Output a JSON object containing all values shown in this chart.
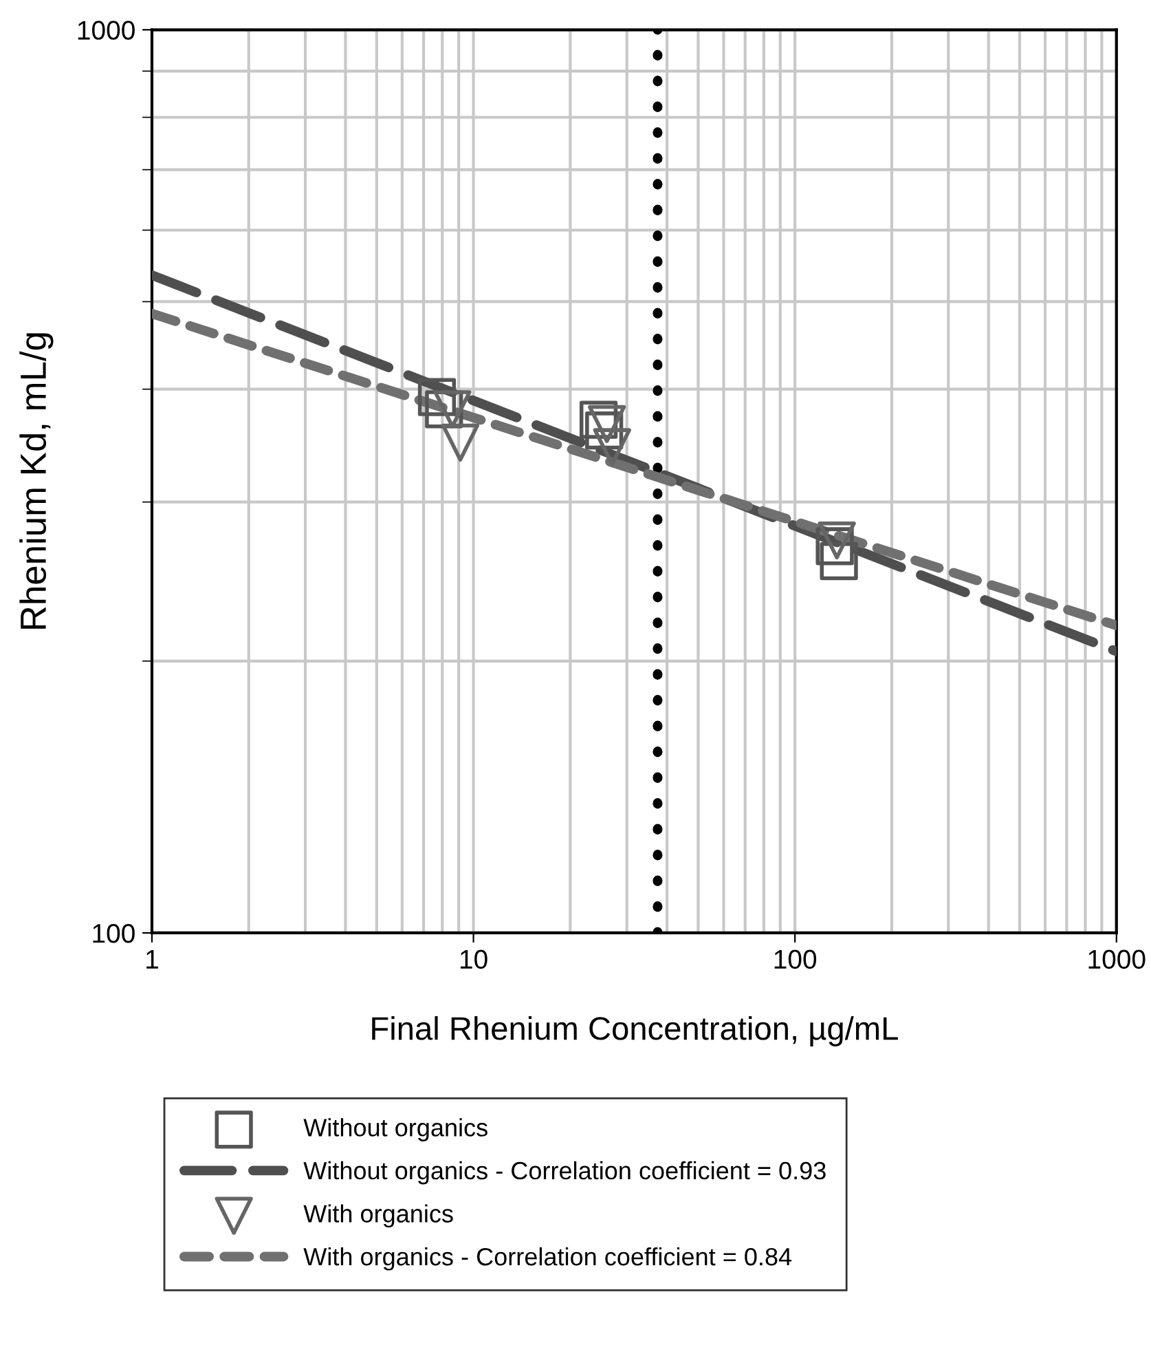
{
  "chart_data": {
    "type": "scatter",
    "xlabel": "Final Rhenium Concentration, µg/mL",
    "ylabel": "Rhenium Kd, mL/g",
    "log": "xy",
    "xlim": [
      1,
      1000
    ],
    "ylim": [
      100,
      1000
    ],
    "xticks": [
      1,
      10,
      100,
      1000
    ],
    "yticks": [
      100,
      1000
    ],
    "grid": true,
    "legend": "bottom",
    "series": [
      {
        "name": "Without organics",
        "marker": "square",
        "color": "#555555",
        "x": [
          7.7,
          8.1,
          24.5,
          25.5,
          133,
          137
        ],
        "values": [
          392,
          380,
          370,
          360,
          268,
          258
        ]
      },
      {
        "name": "Without organics - Correlation coefficient = 0.93",
        "type": "line",
        "line_style": "dashed",
        "marker": "none",
        "color": "#4f4f4f",
        "x": [
          1,
          1000
        ],
        "values": [
          535,
          205
        ]
      },
      {
        "name": "With organics",
        "marker": "triangle",
        "color": "#666666",
        "x": [
          8.6,
          9.1,
          26,
          27,
          135
        ],
        "values": [
          380,
          349,
          366,
          345,
          272
        ]
      },
      {
        "name": "With organics - Correlation coefficient = 0.84",
        "type": "line",
        "line_style": "dotted",
        "marker": "none",
        "color": "#707070",
        "x": [
          1,
          1000
        ],
        "values": [
          485,
          219
        ]
      }
    ],
    "ref_lines": [
      {
        "axis": "x",
        "value": 37.4,
        "color": "#000000",
        "line_style": "dotted"
      }
    ]
  }
}
